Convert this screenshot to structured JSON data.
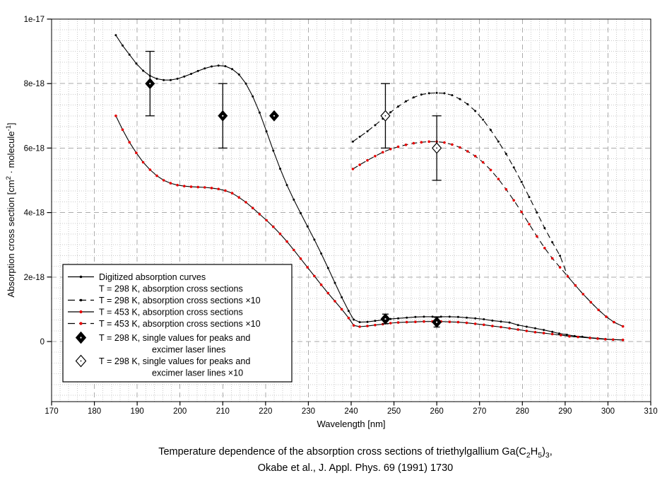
{
  "chart_data": {
    "type": "line",
    "xlabel": "Wavelength [nm]",
    "ylabel_parts": [
      {
        "t": "Absorption cross section [cm"
      },
      {
        "t": "2",
        "sup": true
      },
      {
        "t": " · molecule"
      },
      {
        "t": "-1",
        "sup": true
      },
      {
        "t": "]"
      }
    ],
    "caption": {
      "line1_parts": [
        {
          "t": "Temperature dependence of the absorption cross sections of triethylgallium Ga(C"
        },
        {
          "t": "2",
          "sub": true
        },
        {
          "t": "H"
        },
        {
          "t": "5",
          "sub": true
        },
        {
          "t": ")"
        },
        {
          "t": "3",
          "sub": true
        },
        {
          "t": ","
        }
      ],
      "line2": "Okabe et al., J. Appl. Phys. 69 (1991) 1730"
    },
    "xlim": [
      170,
      310
    ],
    "ylim_e18": [
      -1.864,
      10
    ],
    "x_ticks": [
      170,
      180,
      190,
      200,
      210,
      220,
      230,
      240,
      250,
      260,
      270,
      280,
      290,
      300,
      310
    ],
    "y_ticks": [
      {
        "v": 0,
        "label": "0"
      },
      {
        "v": 2,
        "label": "2e-18"
      },
      {
        "v": 4,
        "label": "4e-18"
      },
      {
        "v": 6,
        "label": "6e-18"
      },
      {
        "v": 8,
        "label": "8e-18"
      },
      {
        "v": 10,
        "label": "1e-17"
      }
    ],
    "x_minor_step": 2,
    "y_minor_per_major": 6,
    "grid": {
      "minor_color": "#c9c9c9",
      "major_color": "#ababab"
    },
    "colors": {
      "line": "#000000",
      "marker_black": "#000000",
      "marker_red": "#e60000",
      "background": "#ffffff"
    },
    "series": [
      {
        "name": "T = 298 K, absorption cross sections",
        "dash": false,
        "marker": "black",
        "points": [
          [
            185,
            9.5
          ],
          [
            186.6,
            9.18
          ],
          [
            188.2,
            8.9
          ],
          [
            189.8,
            8.62
          ],
          [
            191.4,
            8.4
          ],
          [
            193,
            8.24
          ],
          [
            194.6,
            8.15
          ],
          [
            196.2,
            8.11
          ],
          [
            197.8,
            8.11
          ],
          [
            199.4,
            8.15
          ],
          [
            201,
            8.22
          ],
          [
            202.6,
            8.3
          ],
          [
            204.2,
            8.39
          ],
          [
            205.8,
            8.47
          ],
          [
            207.4,
            8.53
          ],
          [
            209,
            8.56
          ],
          [
            210.6,
            8.54
          ],
          [
            212.2,
            8.45
          ],
          [
            213.8,
            8.28
          ],
          [
            215.4,
            8.0
          ],
          [
            217,
            7.6
          ],
          [
            218.6,
            7.1
          ],
          [
            220.2,
            6.52
          ],
          [
            221.8,
            5.92
          ],
          [
            223.4,
            5.36
          ],
          [
            225,
            4.85
          ],
          [
            226.6,
            4.4
          ],
          [
            228.2,
            3.98
          ],
          [
            229.8,
            3.57
          ],
          [
            231.4,
            3.16
          ],
          [
            233,
            2.73
          ],
          [
            234.6,
            2.28
          ],
          [
            236.2,
            1.82
          ],
          [
            237.8,
            1.37
          ],
          [
            239.4,
            0.95
          ],
          [
            240.6,
            0.68
          ],
          [
            242,
            0.6
          ],
          [
            243.8,
            0.61
          ],
          [
            245.6,
            0.64
          ],
          [
            247.4,
            0.67
          ],
          [
            249.2,
            0.7
          ],
          [
            251,
            0.72
          ],
          [
            253,
            0.74
          ],
          [
            255,
            0.76
          ],
          [
            257,
            0.77
          ],
          [
            259,
            0.77
          ],
          [
            261,
            0.77
          ],
          [
            263,
            0.77
          ],
          [
            265,
            0.76
          ],
          [
            267,
            0.74
          ],
          [
            269,
            0.72
          ],
          [
            271,
            0.69
          ],
          [
            273,
            0.65
          ],
          [
            275,
            0.62
          ],
          [
            277,
            0.59
          ],
          [
            279,
            0.51
          ],
          [
            281,
            0.46
          ],
          [
            283,
            0.41
          ],
          [
            285,
            0.36
          ],
          [
            287,
            0.3
          ],
          [
            288.6,
            0.25
          ],
          [
            290.4,
            0.21
          ],
          [
            292.2,
            0.17
          ],
          [
            294,
            0.15
          ],
          [
            295.8,
            0.12
          ],
          [
            297.6,
            0.1
          ],
          [
            299.4,
            0.08
          ],
          [
            301.2,
            0.06
          ],
          [
            303.5,
            0.05
          ]
        ]
      },
      {
        "name": "T = 453 K, absorption cross sections",
        "dash": false,
        "marker": "red",
        "points": [
          [
            185,
            7.0
          ],
          [
            186.6,
            6.57
          ],
          [
            188.2,
            6.18
          ],
          [
            189.8,
            5.85
          ],
          [
            191.4,
            5.56
          ],
          [
            193,
            5.33
          ],
          [
            194.6,
            5.14
          ],
          [
            196.2,
            5.0
          ],
          [
            197.8,
            4.91
          ],
          [
            199.4,
            4.85
          ],
          [
            201,
            4.82
          ],
          [
            202.6,
            4.8
          ],
          [
            204.2,
            4.79
          ],
          [
            205.8,
            4.78
          ],
          [
            207.4,
            4.76
          ],
          [
            209,
            4.73
          ],
          [
            210.6,
            4.68
          ],
          [
            212.2,
            4.6
          ],
          [
            213.8,
            4.47
          ],
          [
            215.4,
            4.32
          ],
          [
            217,
            4.14
          ],
          [
            218.6,
            3.95
          ],
          [
            220.2,
            3.76
          ],
          [
            221.8,
            3.56
          ],
          [
            223.4,
            3.34
          ],
          [
            225,
            3.1
          ],
          [
            226.6,
            2.84
          ],
          [
            228.2,
            2.57
          ],
          [
            229.8,
            2.3
          ],
          [
            231.4,
            2.03
          ],
          [
            233,
            1.76
          ],
          [
            234.6,
            1.5
          ],
          [
            236.2,
            1.25
          ],
          [
            237.8,
            1.0
          ],
          [
            239.4,
            0.73
          ],
          [
            240.6,
            0.5
          ],
          [
            242,
            0.46
          ],
          [
            243.8,
            0.48
          ],
          [
            245.6,
            0.51
          ],
          [
            247.4,
            0.54
          ],
          [
            249.2,
            0.57
          ],
          [
            251,
            0.59
          ],
          [
            253,
            0.6
          ],
          [
            255,
            0.61
          ],
          [
            257,
            0.62
          ],
          [
            259,
            0.62
          ],
          [
            261,
            0.62
          ],
          [
            263,
            0.61
          ],
          [
            265,
            0.6
          ],
          [
            267,
            0.58
          ],
          [
            269,
            0.55
          ],
          [
            271,
            0.52
          ],
          [
            273,
            0.48
          ],
          [
            275,
            0.45
          ],
          [
            277,
            0.41
          ],
          [
            279,
            0.37
          ],
          [
            281,
            0.33
          ],
          [
            283,
            0.29
          ],
          [
            285,
            0.26
          ],
          [
            287,
            0.23
          ],
          [
            289,
            0.2
          ],
          [
            291,
            0.16
          ],
          [
            293,
            0.14
          ],
          [
            295.8,
            0.11
          ],
          [
            297.6,
            0.09
          ],
          [
            299.4,
            0.07
          ],
          [
            301.2,
            0.06
          ],
          [
            303.5,
            0.05
          ]
        ]
      },
      {
        "name": "T = 298 K, absorption cross sections ×10",
        "dash": true,
        "marker": "black",
        "points": [
          [
            240.4,
            6.2
          ],
          [
            242,
            6.35
          ],
          [
            243.8,
            6.52
          ],
          [
            245.6,
            6.71
          ],
          [
            247.4,
            6.91
          ],
          [
            249.2,
            7.11
          ],
          [
            251,
            7.29
          ],
          [
            252.8,
            7.45
          ],
          [
            254.6,
            7.57
          ],
          [
            256.4,
            7.66
          ],
          [
            258.2,
            7.7
          ],
          [
            260,
            7.71
          ],
          [
            261.8,
            7.7
          ],
          [
            263.6,
            7.64
          ],
          [
            265.4,
            7.52
          ],
          [
            267.2,
            7.36
          ],
          [
            269,
            7.15
          ],
          [
            270.8,
            6.88
          ],
          [
            272.6,
            6.56
          ],
          [
            274.4,
            6.2
          ],
          [
            276.2,
            5.82
          ],
          [
            278,
            5.4
          ],
          [
            279.8,
            4.95
          ],
          [
            281.6,
            4.48
          ],
          [
            283.4,
            4.0
          ],
          [
            285.2,
            3.52
          ],
          [
            287,
            3.08
          ],
          [
            288.8,
            2.66
          ],
          [
            290.6,
            2.02
          ],
          [
            292.4,
            1.74
          ],
          [
            294.2,
            1.47
          ],
          [
            296,
            1.22
          ],
          [
            297.8,
            0.98
          ],
          [
            299.6,
            0.77
          ],
          [
            301.4,
            0.6
          ],
          [
            303.5,
            0.47
          ]
        ]
      },
      {
        "name": "T = 453 K, absorption cross sections ×10",
        "dash": true,
        "marker": "red",
        "points": [
          [
            240.4,
            5.35
          ],
          [
            242,
            5.48
          ],
          [
            243.8,
            5.62
          ],
          [
            245.6,
            5.75
          ],
          [
            247.4,
            5.87
          ],
          [
            249.2,
            5.97
          ],
          [
            251,
            6.04
          ],
          [
            252.8,
            6.1
          ],
          [
            254.6,
            6.15
          ],
          [
            256.4,
            6.18
          ],
          [
            258.2,
            6.2
          ],
          [
            260,
            6.2
          ],
          [
            261.8,
            6.17
          ],
          [
            263.6,
            6.11
          ],
          [
            265.4,
            6.02
          ],
          [
            267.2,
            5.9
          ],
          [
            269,
            5.75
          ],
          [
            270.8,
            5.56
          ],
          [
            272.6,
            5.32
          ],
          [
            274.4,
            5.04
          ],
          [
            276.2,
            4.72
          ],
          [
            278,
            4.38
          ],
          [
            279.8,
            4.02
          ],
          [
            281.6,
            3.64
          ],
          [
            283.4,
            3.26
          ],
          [
            285.2,
            2.9
          ],
          [
            287,
            2.58
          ],
          [
            288.8,
            2.3
          ],
          [
            290.6,
            2.02
          ],
          [
            292.4,
            1.74
          ],
          [
            294.2,
            1.47
          ],
          [
            296,
            1.22
          ],
          [
            297.8,
            0.98
          ],
          [
            299.6,
            0.77
          ],
          [
            301.4,
            0.6
          ],
          [
            303.5,
            0.47
          ]
        ]
      }
    ],
    "single_values": [
      {
        "x": 193,
        "y": 8.0,
        "err": 1.0,
        "style": "filled"
      },
      {
        "x": 210,
        "y": 7.0,
        "err": 1.0,
        "style": "filled"
      },
      {
        "x": 222,
        "y": 7.0,
        "err": 0,
        "style": "filled"
      },
      {
        "x": 248,
        "y": 0.7,
        "err": 0.15,
        "style": "filled"
      },
      {
        "x": 260,
        "y": 0.6,
        "err": 0.15,
        "style": "filled"
      },
      {
        "x": 248,
        "y": 7.0,
        "err": 1.0,
        "style": "open"
      },
      {
        "x": 260,
        "y": 6.0,
        "err": 1.0,
        "style": "open"
      }
    ],
    "legend": {
      "rows": [
        {
          "symbol": "line-solid-dot-black",
          "lines": [
            "Digitized absorption curves"
          ]
        },
        {
          "symbol": "none",
          "lines": [
            "T = 298 K, absorption cross sections"
          ]
        },
        {
          "symbol": "line-dash-dot-black",
          "lines": [
            "T = 298 K, absorption cross sections ×10"
          ]
        },
        {
          "symbol": "line-solid-dot-red",
          "lines": [
            "T = 453 K, absorption cross sections"
          ]
        },
        {
          "symbol": "line-dash-dot-red",
          "lines": [
            "T = 453 K, absorption cross sections ×10"
          ]
        },
        {
          "symbol": "diamond-filled",
          "lines": [
            "T = 298 K, single values for peaks and",
            "excimer laser lines"
          ]
        },
        {
          "symbol": "diamond-open",
          "lines": [
            "T = 298 K, single values for peaks and",
            "excimer laser lines ×10"
          ]
        }
      ]
    }
  }
}
